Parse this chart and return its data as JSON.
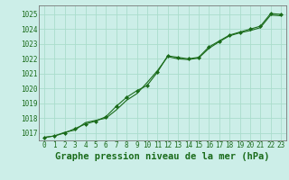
{
  "title": "Graphe pression niveau de la mer (hPa)",
  "background_color": "#cceee8",
  "grid_color": "#aaddcc",
  "line_color": "#1a6b1a",
  "marker_color": "#1a6b1a",
  "xlim": [
    -0.5,
    23.5
  ],
  "ylim": [
    1016.5,
    1025.6
  ],
  "xticks": [
    0,
    1,
    2,
    3,
    4,
    5,
    6,
    7,
    8,
    9,
    10,
    11,
    12,
    13,
    14,
    15,
    16,
    17,
    18,
    19,
    20,
    21,
    22,
    23
  ],
  "yticks": [
    1017,
    1018,
    1019,
    1020,
    1021,
    1022,
    1023,
    1024,
    1025
  ],
  "series1_x": [
    0,
    1,
    2,
    3,
    4,
    5,
    6,
    7,
    8,
    9,
    10,
    11,
    12,
    13,
    14,
    15,
    16,
    17,
    18,
    19,
    20,
    21,
    22,
    23
  ],
  "series1_y": [
    1016.7,
    1016.8,
    1017.0,
    1017.3,
    1017.6,
    1017.8,
    1018.1,
    1018.8,
    1019.4,
    1019.85,
    1020.2,
    1021.1,
    1022.2,
    1022.1,
    1022.0,
    1022.1,
    1022.8,
    1023.2,
    1023.6,
    1023.8,
    1024.0,
    1024.2,
    1025.05,
    1025.0
  ],
  "series2_x": [
    0,
    1,
    2,
    3,
    4,
    5,
    6,
    7,
    8,
    9,
    10,
    11,
    12,
    13,
    14,
    15,
    16,
    17,
    18,
    19,
    20,
    21,
    22,
    23
  ],
  "series2_y": [
    1016.7,
    1016.8,
    1017.05,
    1017.2,
    1017.7,
    1017.85,
    1018.0,
    1018.55,
    1019.2,
    1019.65,
    1020.4,
    1021.2,
    1022.15,
    1022.0,
    1021.95,
    1022.05,
    1022.7,
    1023.15,
    1023.55,
    1023.75,
    1023.9,
    1024.1,
    1024.95,
    1024.9
  ],
  "title_fontsize": 7.5,
  "tick_fontsize": 5.5,
  "title_color": "#1a6b1a",
  "tick_color": "#1a6b1a",
  "spine_color": "#777777"
}
